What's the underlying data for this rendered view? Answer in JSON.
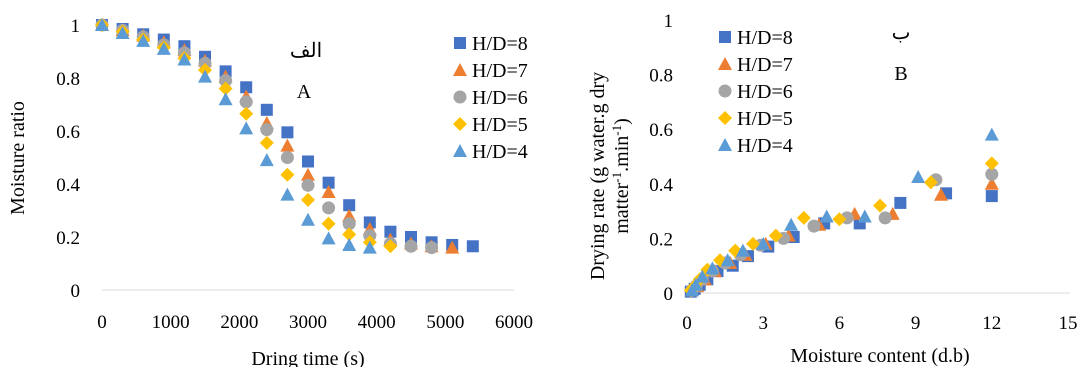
{
  "palette": {
    "H/D=8": "#4472C4",
    "H/D=7": "#ED7D31",
    "H/D=6": "#A5A5A5",
    "H/D=5": "#FFC000",
    "H/D=4": "#5B9BD5"
  },
  "chart_data": [
    {
      "type": "scatter",
      "title": "",
      "annotation_fa": "الف",
      "annotation": "A",
      "xlabel": "Dring time (s)",
      "ylabel": "Moisture ratio",
      "xlim": [
        0,
        6000
      ],
      "ylim": [
        0,
        1
      ],
      "xticks": [
        "0",
        "1000",
        "2000",
        "3000",
        "4000",
        "5000",
        "6000"
      ],
      "yticks": [
        "0",
        "0.2",
        "0.4",
        "0.6",
        "0.8",
        "1"
      ],
      "grid": false,
      "legend_position": "right",
      "series": [
        {
          "name": "H/D=8",
          "marker": "square",
          "x": [
            0,
            300,
            600,
            900,
            1200,
            1500,
            1800,
            2100,
            2400,
            2700,
            3000,
            3300,
            3600,
            3900,
            4200,
            4500,
            4800,
            5100,
            5400
          ],
          "y": [
            1.0,
            0.985,
            0.965,
            0.945,
            0.92,
            0.88,
            0.825,
            0.765,
            0.68,
            0.595,
            0.485,
            0.405,
            0.32,
            0.255,
            0.22,
            0.2,
            0.18,
            0.17,
            0.165
          ]
        },
        {
          "name": "H/D=7",
          "marker": "triangle",
          "x": [
            0,
            300,
            600,
            900,
            1200,
            1500,
            1800,
            2100,
            2400,
            2700,
            3000,
            3300,
            3600,
            3900,
            4200,
            4500,
            4800,
            5100
          ],
          "y": [
            1.0,
            0.98,
            0.96,
            0.935,
            0.905,
            0.865,
            0.805,
            0.73,
            0.63,
            0.545,
            0.435,
            0.37,
            0.28,
            0.23,
            0.19,
            0.175,
            0.165,
            0.16
          ]
        },
        {
          "name": "H/D=6",
          "marker": "circle",
          "x": [
            0,
            300,
            600,
            900,
            1200,
            1500,
            1800,
            2100,
            2400,
            2700,
            3000,
            3300,
            3600,
            3900,
            4200,
            4500,
            4800
          ],
          "y": [
            1.0,
            0.98,
            0.955,
            0.925,
            0.895,
            0.855,
            0.79,
            0.71,
            0.605,
            0.5,
            0.395,
            0.31,
            0.25,
            0.205,
            0.175,
            0.165,
            0.16
          ]
        },
        {
          "name": "H/D=5",
          "marker": "diamond",
          "x": [
            0,
            300,
            600,
            900,
            1200,
            1500,
            1800,
            2100,
            2400,
            2700,
            3000,
            3300,
            3600,
            3900,
            4200
          ],
          "y": [
            1.0,
            0.975,
            0.945,
            0.915,
            0.875,
            0.83,
            0.76,
            0.665,
            0.555,
            0.435,
            0.34,
            0.25,
            0.21,
            0.18,
            0.165
          ]
        },
        {
          "name": "H/D=4",
          "marker": "triangle",
          "x": [
            0,
            300,
            600,
            900,
            1200,
            1500,
            1800,
            2100,
            2400,
            2700,
            3000,
            3300,
            3600,
            3900
          ],
          "y": [
            1.0,
            0.97,
            0.94,
            0.91,
            0.87,
            0.805,
            0.72,
            0.61,
            0.49,
            0.36,
            0.265,
            0.195,
            0.17,
            0.16
          ]
        }
      ]
    },
    {
      "type": "scatter",
      "title": "",
      "annotation_fa": "ب",
      "annotation": "B",
      "xlabel": "Moisture content (d.b)",
      "ylabel_line1": "Drying rate (g water.g dry",
      "ylabel_line2_parts": [
        "matter",
        "-1",
        ".min",
        "-1",
        ")"
      ],
      "xlim": [
        0,
        15
      ],
      "ylim": [
        0,
        1
      ],
      "xticks": [
        "0",
        "3",
        "6",
        "9",
        "12",
        "15"
      ],
      "yticks": [
        "0",
        "0.2",
        "0.4",
        "0.6",
        "0.8",
        "1"
      ],
      "grid": false,
      "legend_position": "top-left",
      "series": [
        {
          "name": "H/D=8",
          "marker": "square",
          "x": [
            12.0,
            10.2,
            8.4,
            6.8,
            5.4,
            4.2,
            3.2,
            2.4,
            1.8,
            1.2,
            0.8,
            0.5,
            0.3,
            0.15
          ],
          "y": [
            0.355,
            0.365,
            0.33,
            0.255,
            0.255,
            0.205,
            0.17,
            0.135,
            0.1,
            0.08,
            0.05,
            0.03,
            0.015,
            0.005
          ]
        },
        {
          "name": "H/D=7",
          "marker": "triangle",
          "x": [
            12.0,
            10.0,
            8.1,
            6.6,
            5.2,
            4.0,
            3.1,
            2.3,
            1.7,
            1.1,
            0.7,
            0.4,
            0.2
          ],
          "y": [
            0.4,
            0.36,
            0.29,
            0.29,
            0.25,
            0.21,
            0.18,
            0.14,
            0.11,
            0.08,
            0.05,
            0.025,
            0.01
          ]
        },
        {
          "name": "H/D=6",
          "marker": "circle",
          "x": [
            12.0,
            9.8,
            7.8,
            6.3,
            5.0,
            3.8,
            2.9,
            2.1,
            1.5,
            1.0,
            0.6,
            0.35,
            0.2
          ],
          "y": [
            0.435,
            0.415,
            0.275,
            0.275,
            0.245,
            0.2,
            0.175,
            0.14,
            0.11,
            0.08,
            0.05,
            0.025,
            0.01
          ]
        },
        {
          "name": "H/D=5",
          "marker": "diamond",
          "x": [
            12.0,
            9.6,
            7.6,
            6.0,
            4.6,
            3.5,
            2.6,
            1.9,
            1.3,
            0.8,
            0.5,
            0.3,
            0.15
          ],
          "y": [
            0.475,
            0.405,
            0.32,
            0.27,
            0.275,
            0.21,
            0.18,
            0.155,
            0.12,
            0.085,
            0.05,
            0.025,
            0.01
          ]
        },
        {
          "name": "H/D=4",
          "marker": "triangle",
          "x": [
            12.0,
            9.1,
            7.0,
            5.5,
            4.1,
            3.0,
            2.2,
            1.6,
            1.0,
            0.6,
            0.35,
            0.2
          ],
          "y": [
            0.58,
            0.425,
            0.28,
            0.28,
            0.25,
            0.18,
            0.155,
            0.12,
            0.09,
            0.06,
            0.03,
            0.01
          ]
        }
      ]
    }
  ]
}
